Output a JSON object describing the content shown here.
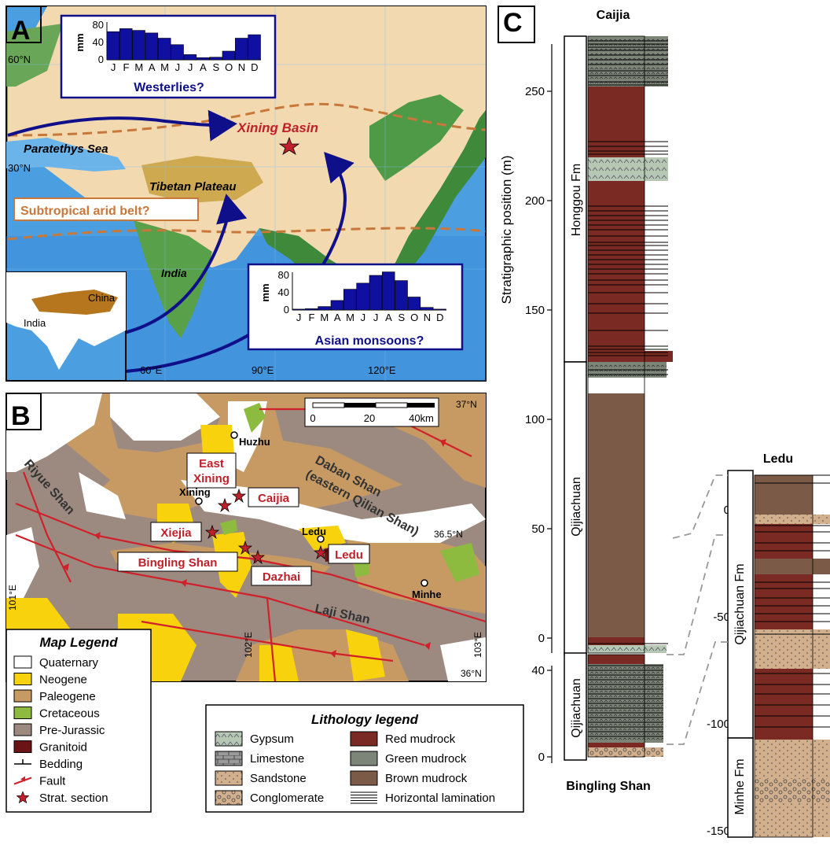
{
  "colors": {
    "ocean": "#4b9fe0",
    "land": "#f2d9b0",
    "green": "#3f8a3a",
    "plateau": "#c8a040",
    "navy": "#0f0f8a",
    "red": "#c0202a",
    "tan_dash": "#c8783a",
    "quaternary": "#ffffff",
    "neogene": "#f8d20c",
    "paleogene": "#c79a64",
    "cretaceous": "#8dbb3f",
    "prejurassic": "#9c8a80",
    "granitoid": "#6a1416",
    "red_mud": "#7a2a22",
    "green_mud": "#7d8478",
    "brown_mud": "#7b5a47",
    "gypsum": "#b6c8b4",
    "sandstone": "#d2b08e"
  },
  "panelA": {
    "label": "A",
    "lat60": "60°N",
    "lat30": "30°N",
    "lon60": "60°E",
    "lon90": "90°E",
    "lon120": "120°E",
    "xining": "Xining Basin",
    "paratethys": "Paratethys Sea",
    "tibet": "Tibetan Plateau",
    "arid": "Subtropical arid belt?",
    "india": "India",
    "inset_india": "India",
    "inset_china": "China",
    "westerlies": {
      "title": "Westerlies?",
      "ylabel": "mm",
      "ticks": [
        "80",
        "40",
        "0"
      ],
      "months": [
        "J",
        "F",
        "M",
        "A",
        "M",
        "J",
        "J",
        "A",
        "S",
        "O",
        "N",
        "D"
      ],
      "values": [
        65,
        72,
        68,
        62,
        50,
        35,
        12,
        5,
        6,
        20,
        50,
        58
      ]
    },
    "monsoon": {
      "title": "Asian monsoons?",
      "ylabel": "mm",
      "ticks": [
        "80",
        "40",
        "0"
      ],
      "months": [
        "J",
        "F",
        "M",
        "A",
        "M",
        "J",
        "J",
        "A",
        "S",
        "O",
        "N",
        "D"
      ],
      "values": [
        2,
        3,
        8,
        22,
        48,
        62,
        80,
        88,
        68,
        30,
        6,
        2
      ]
    }
  },
  "panelB": {
    "label": "B",
    "scale_ticks": [
      "0",
      "20",
      "40km"
    ],
    "lat37": "37°N",
    "lat365": "36.5°N",
    "lat36": "36°N",
    "lon101": "101°E",
    "lon102": "102°E",
    "lon103": "103°E",
    "huzhu": "Huzhu",
    "xining": "Xining",
    "ledu_town": "Ledu",
    "minhe": "Minhe",
    "east_xining": [
      "East",
      "Xining"
    ],
    "caijia": "Caijia",
    "xiejia": "Xiejia",
    "bingling": "Bingling Shan",
    "dazhai": "Dazhai",
    "ledu": "Ledu",
    "riyue": "Riyue Shan",
    "daban1": "Daban Shan",
    "daban2": "(eastern Qilian Shan)",
    "laji": "Laji Shan"
  },
  "map_legend": {
    "title": "Map Legend",
    "items": [
      "Quaternary",
      "Neogene",
      "Paleogene",
      "Cretaceous",
      "Pre-Jurassic",
      "Granitoid",
      "Bedding",
      "Fault",
      "Strat. section"
    ]
  },
  "litho_legend": {
    "title": "Lithology legend",
    "left": [
      "Gypsum",
      "Limestone",
      "Sandstone",
      "Conglomerate"
    ],
    "right": [
      "Red mudrock",
      "Green mudrock",
      "Brown mudrock",
      "Horizontal lamination"
    ]
  },
  "panelC": {
    "label": "C",
    "caijia_title": "Caijia",
    "ledu_title": "Ledu",
    "bingling_title": "Bingling Shan",
    "ylabel": "Stratigraphic position (m)",
    "caijia_ticks": [
      "250",
      "200",
      "150",
      "100",
      "50",
      "0"
    ],
    "bingling_ticks": [
      "40",
      "0"
    ],
    "ledu_ticks": [
      "0",
      "-50",
      "-100",
      "-150"
    ],
    "honggou": "Honggou Fm",
    "qijiachuan": "Qijiachuan",
    "ledu_qij": "Qijiachuan Fm",
    "ledu_minhe": "Minhe Fm"
  }
}
